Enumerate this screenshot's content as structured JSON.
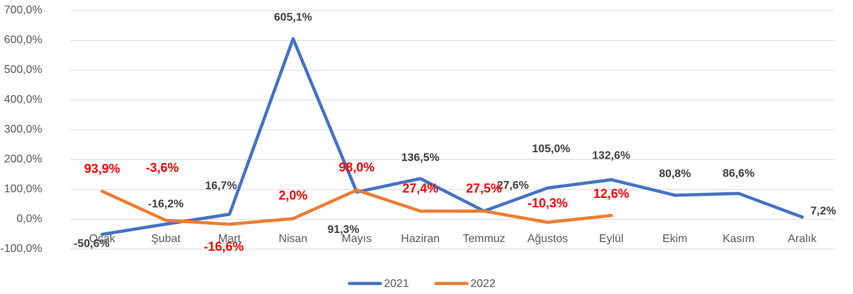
{
  "chart_data": {
    "type": "line",
    "categories": [
      "Ocak",
      "Şubat",
      "Mart",
      "Nisan",
      "Mayıs",
      "Haziran",
      "Temmuz",
      "Ağustos",
      "Eylül",
      "Ekim",
      "Kasım",
      "Aralık"
    ],
    "series": [
      {
        "name": "2021",
        "color": "#4472c4",
        "values": [
          -50.6,
          -16.2,
          16.7,
          605.1,
          91.3,
          136.5,
          27.6,
          105.0,
          132.6,
          80.8,
          86.6,
          7.2
        ],
        "value_labels": [
          "-50,6%",
          "-16,2%",
          "16,7%",
          "605,1%",
          "91,3%",
          "136,5%",
          "27,6%",
          "105,0%",
          "132,6%",
          "80,8%",
          "86,6%",
          "7,2%"
        ]
      },
      {
        "name": "2022",
        "color": "#ed7d31",
        "values": [
          93.9,
          -3.6,
          -16.6,
          2.0,
          98.0,
          27.4,
          27.5,
          -10.3,
          12.6,
          null,
          null,
          null
        ],
        "value_labels": [
          "93,9%",
          "-3,6%",
          "-16,6%",
          "2,0%",
          "98,0%",
          "27,4%",
          "27,5%",
          "-10,3%",
          "12,6%",
          null,
          null,
          null
        ]
      }
    ],
    "ylim": [
      -100,
      700
    ],
    "yticks": [
      {
        "value": -100,
        "label": "-100,0%"
      },
      {
        "value": 0,
        "label": "0,0%"
      },
      {
        "value": 100,
        "label": "100,0%"
      },
      {
        "value": 200,
        "label": "200,0%"
      },
      {
        "value": 300,
        "label": "300,0%"
      },
      {
        "value": 400,
        "label": "400,0%"
      },
      {
        "value": 500,
        "label": "500,0%"
      },
      {
        "value": 600,
        "label": "600,0%"
      },
      {
        "value": 700,
        "label": "700,0%"
      }
    ],
    "grid": true,
    "legend": "bottom"
  }
}
